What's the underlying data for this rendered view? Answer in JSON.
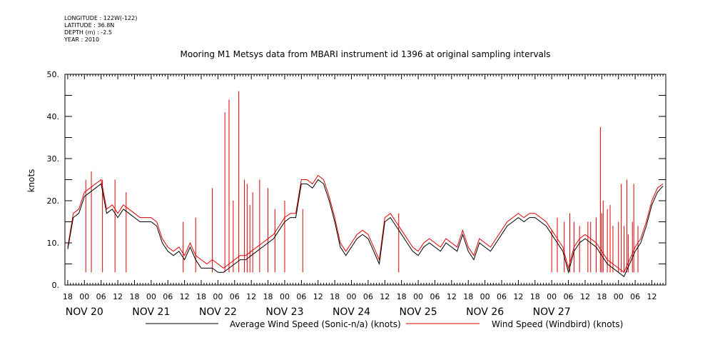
{
  "header": {
    "longitude": "LONGITUDE : 122W(-122)",
    "latitude": "LATITUDE : 36.8N",
    "depth": "DEPTH (m) : -2.5",
    "year": "YEAR : 2010"
  },
  "chart_data": {
    "type": "line",
    "title": "Mooring M1 Metsys data from MBARI instrument id 1396 at original sampling intervals",
    "ylabel": "knots",
    "xlabel": "",
    "ylim": [
      0,
      50
    ],
    "yticks": [
      "0.",
      "10.",
      "20.",
      "30.",
      "40.",
      "50."
    ],
    "x_range_hours": [
      -7,
      209
    ],
    "x_range_note": "hours from NOV 20 00:00, 2010",
    "xtick_hours": [
      "18",
      "00",
      "06",
      "12"
    ],
    "day_labels": [
      "NOV 20",
      "NOV 21",
      "NOV 22",
      "NOV 23",
      "NOV 24",
      "NOV 25",
      "NOV 26",
      "NOV 27"
    ],
    "grid": false,
    "legend_position": "bottom",
    "colors": {
      "average": "#000000",
      "windbird": "#e00000"
    },
    "series": [
      {
        "name": "Average Wind Speed (Sonic-n/a) (knots)",
        "color": "#000000",
        "x": [
          -6,
          -4,
          -2,
          0,
          2,
          4,
          6,
          8,
          10,
          12,
          14,
          16,
          18,
          20,
          22,
          24,
          26,
          28,
          30,
          32,
          34,
          36,
          38,
          40,
          42,
          44,
          46,
          48,
          50,
          52,
          54,
          56,
          58,
          60,
          62,
          64,
          66,
          68,
          70,
          72,
          74,
          76,
          78,
          80,
          82,
          84,
          86,
          88,
          90,
          92,
          94,
          96,
          98,
          100,
          102,
          104,
          106,
          108,
          110,
          112,
          114,
          116,
          118,
          120,
          122,
          124,
          126,
          128,
          130,
          132,
          134,
          136,
          138,
          140,
          142,
          144,
          146,
          148,
          150,
          152,
          154,
          156,
          158,
          160,
          162,
          164,
          166,
          168,
          170,
          172,
          174,
          176,
          178,
          180,
          182,
          184,
          186,
          188,
          190,
          192,
          194,
          196,
          198,
          200,
          202,
          204,
          206,
          208
        ],
        "values": [
          8.5,
          16,
          17,
          21,
          22,
          23,
          24,
          17,
          18,
          16,
          18,
          17,
          16,
          15,
          15,
          15,
          14,
          10,
          8,
          7,
          8,
          6,
          9,
          6,
          4,
          4,
          4,
          3,
          3,
          4,
          5,
          6,
          6,
          7,
          8,
          9,
          10,
          11,
          13,
          15,
          16,
          16,
          24,
          24,
          23,
          25,
          24,
          20,
          15,
          9,
          7,
          9,
          11,
          12,
          11,
          8,
          5,
          15,
          16,
          14,
          12,
          10,
          8,
          7,
          9,
          10,
          9,
          8,
          10,
          9,
          8,
          12,
          8,
          6,
          10,
          9,
          8,
          10,
          12,
          14,
          15,
          16,
          15,
          16,
          16,
          15,
          14,
          12,
          10,
          8,
          3,
          8,
          10,
          11,
          10,
          9,
          7,
          5,
          4,
          3,
          2,
          5,
          8,
          10,
          14,
          19,
          22,
          23.5
        ]
      },
      {
        "name": "Wind Speed (Windbird) (knots)",
        "color": "#e00000",
        "x": [
          -6,
          -4,
          -2,
          0,
          2,
          4,
          6,
          8,
          10,
          12,
          14,
          16,
          18,
          20,
          22,
          24,
          26,
          28,
          30,
          32,
          34,
          36,
          38,
          40,
          42,
          44,
          46,
          48,
          50,
          52,
          54,
          56,
          58,
          60,
          62,
          64,
          66,
          68,
          70,
          72,
          74,
          76,
          78,
          80,
          82,
          84,
          86,
          88,
          90,
          92,
          94,
          96,
          98,
          100,
          102,
          104,
          106,
          108,
          110,
          112,
          114,
          116,
          118,
          120,
          122,
          124,
          126,
          128,
          130,
          132,
          134,
          136,
          138,
          140,
          142,
          144,
          146,
          148,
          150,
          152,
          154,
          156,
          158,
          160,
          162,
          164,
          166,
          168,
          170,
          172,
          174,
          176,
          178,
          180,
          182,
          184,
          186,
          188,
          190,
          192,
          194,
          196,
          198,
          200,
          202,
          204,
          206,
          208
        ],
        "values": [
          9,
          17,
          18,
          22,
          23,
          24,
          25,
          18,
          19,
          17,
          19,
          18,
          17,
          16,
          16,
          16,
          15,
          11,
          9,
          8,
          9,
          7,
          10,
          7,
          6,
          5,
          6,
          5,
          4,
          5,
          6,
          7,
          7,
          8,
          9,
          10,
          11,
          12,
          14,
          16,
          17,
          17,
          25,
          25,
          24,
          26,
          25,
          21,
          16,
          10,
          8,
          10,
          12,
          13,
          12,
          9,
          6,
          16,
          17,
          15,
          13,
          11,
          9,
          8,
          10,
          11,
          10,
          9,
          11,
          10,
          9,
          13,
          9,
          7,
          11,
          10,
          9,
          11,
          13,
          15,
          16,
          17,
          16,
          17,
          17,
          16,
          15,
          13,
          11,
          9,
          4,
          9,
          11,
          12,
          11,
          10,
          8,
          6,
          5,
          4,
          3,
          6,
          9,
          11,
          15,
          20,
          23,
          24
        ]
      }
    ],
    "spikes": {
      "x": [
        0.5,
        2.5,
        6.5,
        11,
        15,
        35.5,
        40,
        46,
        50.5,
        52,
        53.5,
        55.5,
        57.5,
        58.5,
        59.5,
        60.5,
        63,
        66,
        68.5,
        72,
        78.5,
        113,
        168,
        170,
        172.5,
        174.5,
        176,
        178,
        181,
        182,
        184,
        186,
        188,
        190,
        192,
        194,
        195.5,
        197,
        199
      ],
      "values": [
        25,
        27,
        25,
        25,
        22,
        15,
        16,
        23,
        41,
        44,
        20,
        46,
        25,
        24,
        19,
        22,
        25,
        23,
        18,
        20,
        18,
        17,
        13,
        16,
        15,
        17,
        15,
        14,
        15,
        15,
        16,
        17,
        18,
        14,
        15,
        14,
        12,
        15,
        14
      ]
    },
    "late_spikes": {
      "x": [
        185.5,
        186.5,
        189,
        193,
        195,
        197.5
      ],
      "values": [
        37.5,
        20,
        19,
        24,
        25,
        24
      ]
    }
  }
}
